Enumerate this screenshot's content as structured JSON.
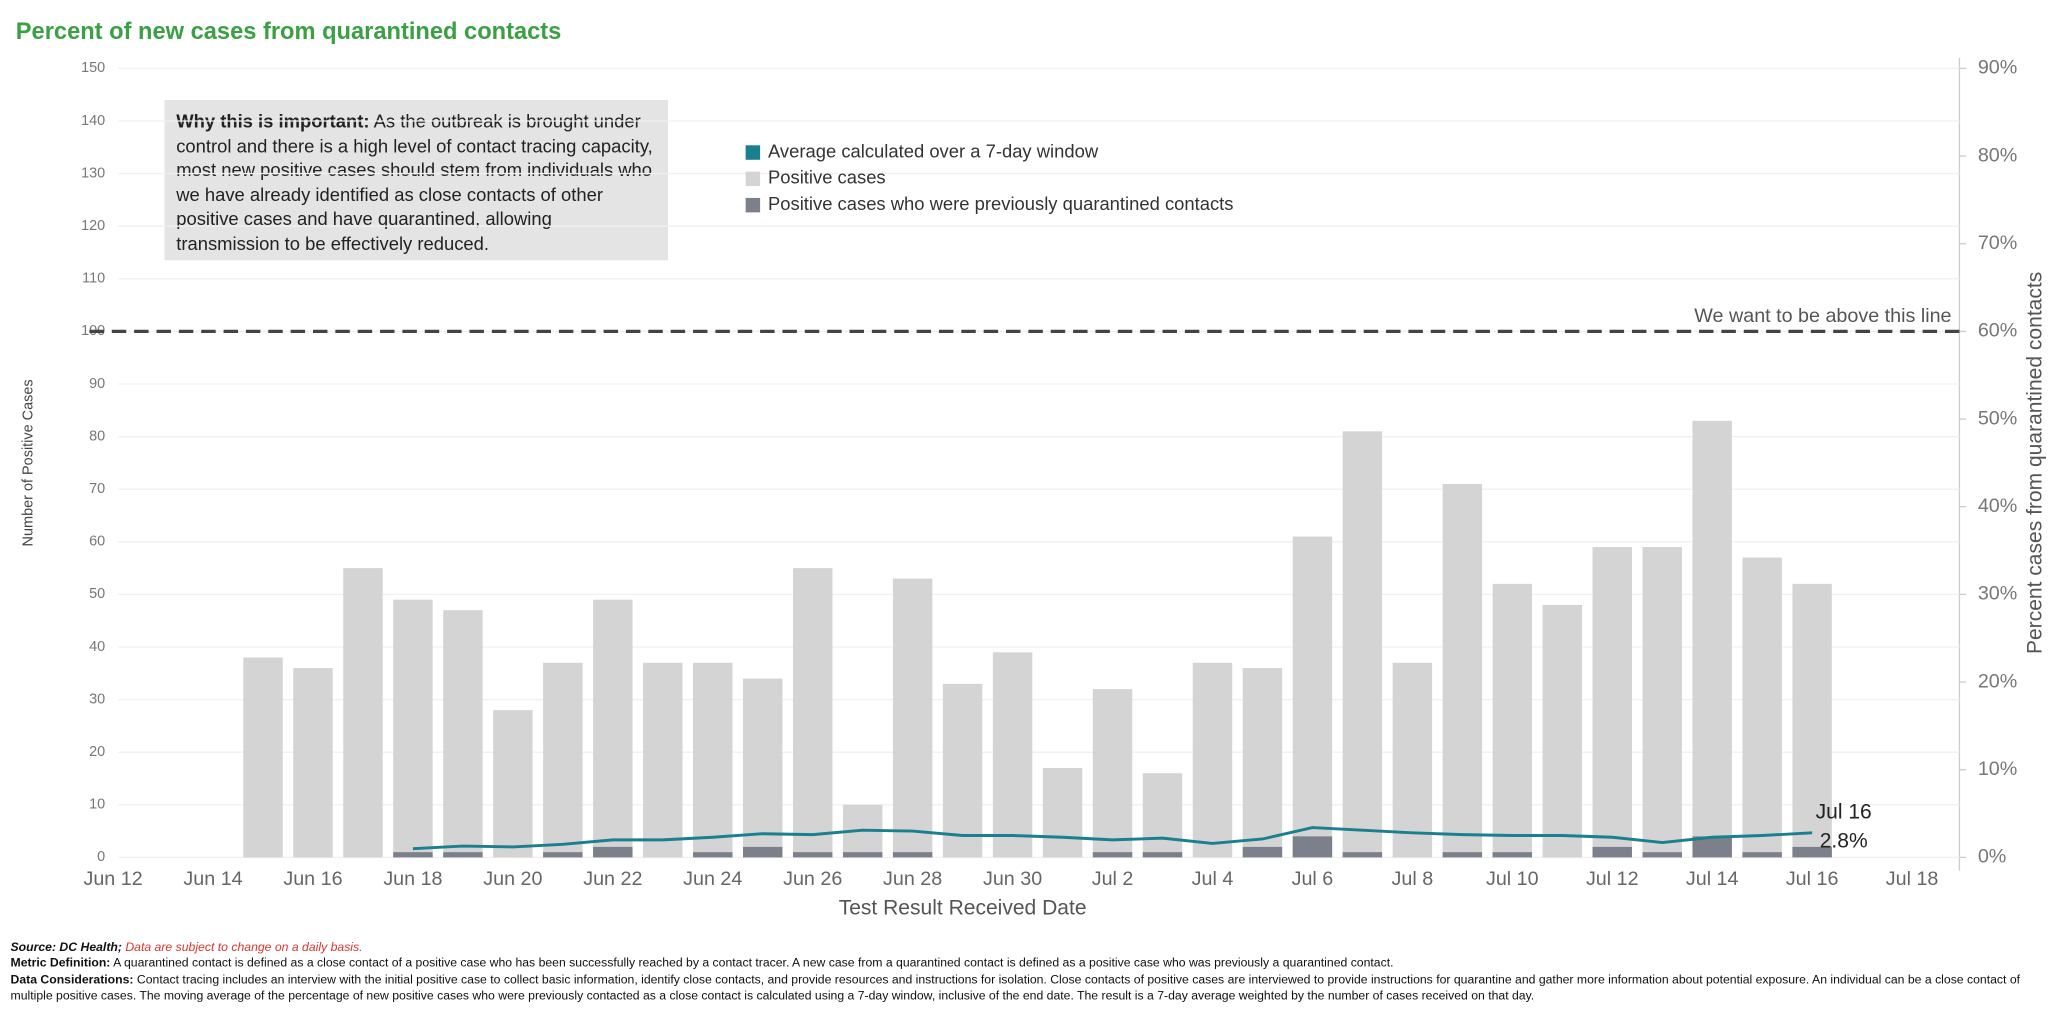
{
  "chart_data": {
    "type": "bar",
    "title": "Percent of new cases from quarantined contacts",
    "annotation": {
      "heading": "Why this is important:",
      "text": "As the outbreak is brought under control and there is a high level of contact tracing capacity, most new positive cases should stem from individuals who we have already identified as close contacts of other positive cases and have quarantined, allowing transmission to be effectively reduced."
    },
    "x_label": "Test Result Received Date",
    "y_label": "Number of Positive Cases",
    "y2_label": "Percent cases from quarantined contacts",
    "categories": [
      "Jun 15",
      "Jun 16",
      "Jun 17",
      "Jun 18",
      "Jun 19",
      "Jun 20",
      "Jun 21",
      "Jun 22",
      "Jun 23",
      "Jun 24",
      "Jun 25",
      "Jun 26",
      "Jun 27",
      "Jun 28",
      "Jun 29",
      "Jun 30",
      "Jul 1",
      "Jul 2",
      "Jul 3",
      "Jul 4",
      "Jul 5",
      "Jul 6",
      "Jul 7",
      "Jul 8",
      "Jul 9",
      "Jul 10",
      "Jul 11",
      "Jul 12",
      "Jul 13",
      "Jul 14",
      "Jul 15",
      "Jul 16"
    ],
    "series": [
      {
        "name": "Average calculated over a 7-day window",
        "color": "#1a7f8e",
        "type": "line",
        "axis": "y2",
        "values": [
          null,
          null,
          null,
          1.0,
          1.3,
          1.2,
          1.5,
          2.0,
          2.0,
          2.3,
          2.7,
          2.6,
          3.1,
          3.0,
          2.5,
          2.5,
          2.3,
          2.0,
          2.2,
          1.6,
          2.1,
          3.4,
          3.1,
          2.8,
          2.6,
          2.5,
          2.5,
          2.3,
          1.7,
          2.3,
          2.5,
          2.8
        ],
        "value_labels": [
          null,
          null,
          null,
          null,
          null,
          null,
          null,
          null,
          null,
          null,
          null,
          null,
          null,
          null,
          null,
          null,
          null,
          null,
          null,
          null,
          null,
          null,
          null,
          null,
          null,
          null,
          null,
          null,
          null,
          null,
          null,
          "2.8%"
        ]
      },
      {
        "name": "Positive cases",
        "color": "#d4d4d4",
        "values": [
          38,
          36,
          55,
          49,
          47,
          28,
          37,
          49,
          37,
          37,
          34,
          55,
          10,
          53,
          33,
          39,
          17,
          32,
          16,
          37,
          36,
          61,
          81,
          37,
          71,
          52,
          48,
          59,
          59,
          83,
          57,
          52
        ]
      },
      {
        "name": "Positive cases who were previously quarantined contacts",
        "color": "#7c808b",
        "values": [
          0,
          0,
          0,
          1,
          1,
          0,
          1,
          2,
          0,
          1,
          2,
          1,
          1,
          1,
          0,
          0,
          0,
          1,
          1,
          0,
          2,
          4,
          1,
          0,
          1,
          1,
          0,
          2,
          1,
          4,
          1,
          2
        ]
      }
    ],
    "xticks": [
      "Jun 12",
      "Jun 14",
      "Jun 16",
      "Jun 18",
      "Jun 20",
      "Jun 22",
      "Jun 24",
      "Jun 26",
      "Jun 28",
      "Jun 30",
      "Jul 2",
      "Jul 4",
      "Jul 6",
      "Jul 8",
      "Jul 10",
      "Jul 12",
      "Jul 14",
      "Jul 16",
      "Jul 18"
    ],
    "ylim": [
      0,
      150
    ],
    "yticks": [
      0,
      10,
      20,
      30,
      40,
      50,
      60,
      70,
      80,
      90,
      100,
      110,
      120,
      130,
      140,
      150
    ],
    "y2lim": [
      0,
      90
    ],
    "y2ticks": [
      {
        "value": 0,
        "label": "0%"
      },
      {
        "value": 10,
        "label": "10%"
      },
      {
        "value": 20,
        "label": "20%"
      },
      {
        "value": 30,
        "label": "30%"
      },
      {
        "value": 40,
        "label": "40%"
      },
      {
        "value": 50,
        "label": "50%"
      },
      {
        "value": 60,
        "label": "60%"
      },
      {
        "value": 70,
        "label": "70%"
      },
      {
        "value": 80,
        "label": "80%"
      },
      {
        "value": 90,
        "label": "90%"
      }
    ],
    "reference_line": {
      "value": 100,
      "label": "We want to be above this line"
    },
    "grid": true,
    "footnotes": {
      "source": "Source: DC Health;",
      "source_note": "Data are subject to change on a daily basis.",
      "metric_heading": "Metric Definition:",
      "metric_text": "A quarantined contact is defined as a close contact of a positive case who has been successfully reached by a contact tracer. A new case from a quarantined contact is defined as a positive case who was previously a quarantined contact.",
      "considerations_heading": "Data Considerations:",
      "considerations_text": "Contact tracing includes an interview with the initial positive case to collect basic information, identify close contacts, and provide resources and instructions for isolation. Close contacts of positive cases are interviewed to provide instructions for quarantine and gather more information about potential exposure. An individual can be a close contact of multiple positive cases. The moving average of the percentage of new positive cases who were previously contacted as a close contact is calculated using a 7-day window, inclusive of the end date. The result is a 7-day average weighted by the number of cases received on that day."
    }
  }
}
